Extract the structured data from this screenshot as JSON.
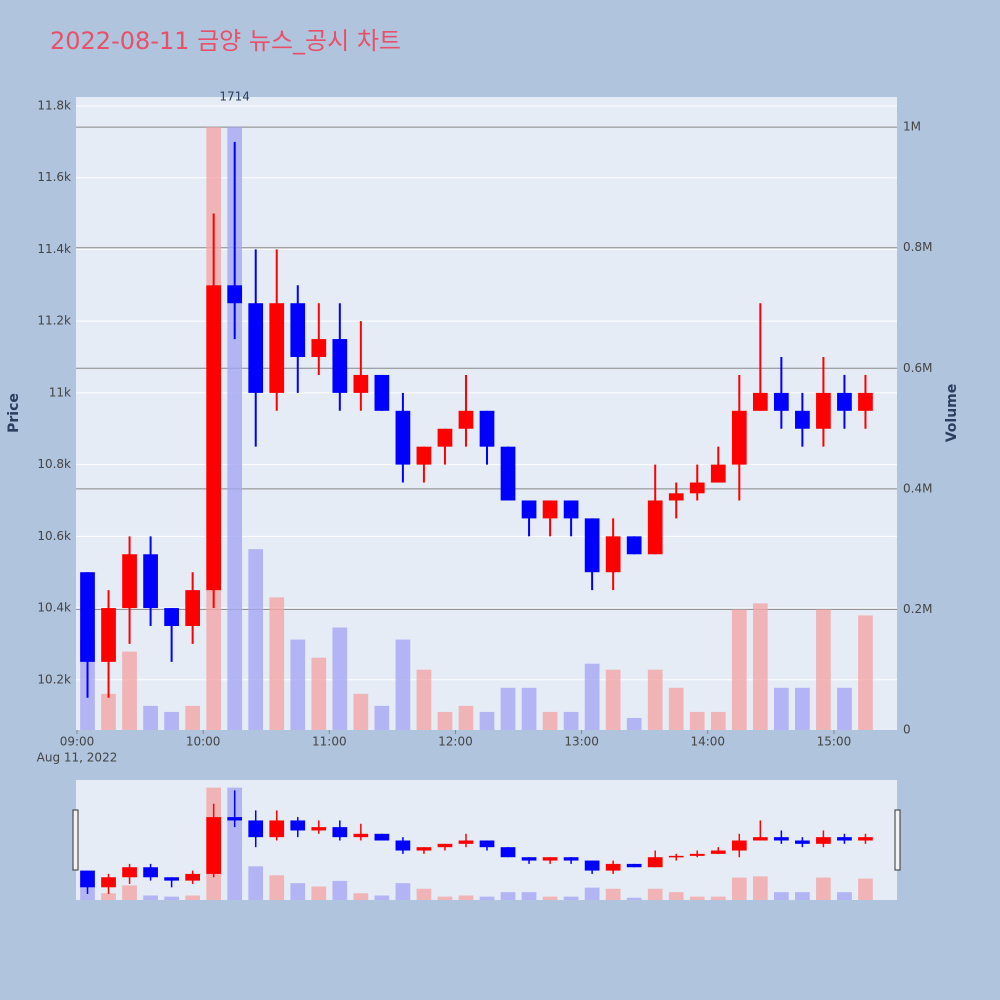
{
  "chart_data": {
    "type": "candlestick",
    "title": "2022-08-11 금양 뉴스_공시 차트",
    "y_title": "Price",
    "y2_title": "Volume",
    "x_date_label": "Aug 11, 2022",
    "x": [
      "09:00",
      "09:10",
      "09:20",
      "09:30",
      "09:40",
      "09:50",
      "10:00",
      "10:10",
      "10:20",
      "10:30",
      "10:40",
      "10:50",
      "11:00",
      "11:10",
      "11:20",
      "11:30",
      "11:40",
      "11:50",
      "12:00",
      "12:10",
      "12:20",
      "12:30",
      "12:40",
      "12:50",
      "13:00",
      "13:10",
      "13:20",
      "13:30",
      "13:40",
      "13:50",
      "14:00",
      "14:10",
      "14:20",
      "14:30",
      "14:40",
      "14:50",
      "15:00",
      "15:10"
    ],
    "open": [
      10500,
      10250,
      10400,
      10550,
      10400,
      10350,
      10450,
      11300,
      11250,
      11000,
      11250,
      11100,
      11150,
      11000,
      11050,
      10950,
      10800,
      10850,
      10900,
      10950,
      10850,
      10700,
      10650,
      10700,
      10650,
      10500,
      10600,
      10550,
      10700,
      10720,
      10750,
      10800,
      10950,
      11000,
      10950,
      10900,
      11000,
      10950
    ],
    "high": [
      10500,
      10450,
      10600,
      10600,
      10400,
      10500,
      11500,
      11700,
      11400,
      11400,
      11300,
      11250,
      11250,
      11200,
      11050,
      11000,
      10850,
      10900,
      11050,
      10950,
      10850,
      10700,
      10700,
      10700,
      10650,
      10650,
      10600,
      10800,
      10750,
      10800,
      10850,
      11050,
      11250,
      11100,
      11000,
      11100,
      11050,
      11050
    ],
    "low": [
      10150,
      10150,
      10300,
      10350,
      10250,
      10300,
      10400,
      11150,
      10850,
      10950,
      11000,
      11050,
      10950,
      10950,
      10950,
      10750,
      10750,
      10800,
      10850,
      10800,
      10700,
      10600,
      10600,
      10600,
      10450,
      10450,
      10550,
      10550,
      10650,
      10700,
      10750,
      10700,
      10950,
      10900,
      10850,
      10850,
      10900,
      10900
    ],
    "close": [
      10250,
      10400,
      10550,
      10400,
      10350,
      10450,
      11300,
      11250,
      11000,
      11250,
      11100,
      11150,
      11000,
      11050,
      10950,
      10800,
      10850,
      10900,
      10950,
      10850,
      10700,
      10650,
      10700,
      10650,
      10500,
      10600,
      10550,
      10700,
      10720,
      10750,
      10800,
      10950,
      11000,
      10950,
      10900,
      11000,
      10950,
      11000
    ],
    "volume": [
      150000,
      60000,
      130000,
      40000,
      30000,
      40000,
      1000000,
      1000000,
      300000,
      220000,
      150000,
      120000,
      170000,
      60000,
      40000,
      150000,
      100000,
      30000,
      40000,
      30000,
      70000,
      70000,
      30000,
      30000,
      110000,
      100000,
      20000,
      100000,
      70000,
      30000,
      30000,
      200000,
      210000,
      70000,
      70000,
      200000,
      70000,
      190000
    ],
    "increasing_color": "#ff0000",
    "decreasing_color": "#0000ff",
    "volume_increasing_color": "#f4a6a6",
    "volume_decreasing_color": "#a6a6f4",
    "xlim": [
      "09:00",
      "15:30"
    ],
    "xticks": [
      "09:00",
      "10:00",
      "11:00",
      "12:00",
      "13:00",
      "14:00",
      "15:00"
    ],
    "ylim": [
      10060,
      11825
    ],
    "yticks": [
      {
        "value": 10200,
        "label": "10.2k"
      },
      {
        "value": 10400,
        "label": "10.4k"
      },
      {
        "value": 10600,
        "label": "10.6k"
      },
      {
        "value": 10800,
        "label": "10.8k"
      },
      {
        "value": 11000,
        "label": "11k"
      },
      {
        "value": 11200,
        "label": "11.2k"
      },
      {
        "value": 11400,
        "label": "11.4k"
      },
      {
        "value": 11600,
        "label": "11.6k"
      },
      {
        "value": 11800,
        "label": "11.8k"
      }
    ],
    "y2lim": [
      0,
      1050000
    ],
    "y2ticks": [
      0,
      {
        "value": 200000,
        "label": "0.2M"
      },
      {
        "value": 400000,
        "label": "0.4M"
      },
      {
        "value": 600000,
        "label": "0.6M"
      },
      {
        "value": 800000,
        "label": "0.8M"
      },
      {
        "value": 1000000,
        "label": "1M"
      }
    ],
    "annotations": [
      {
        "text": "1714",
        "x": "10:10"
      }
    ],
    "range_slider": true
  }
}
